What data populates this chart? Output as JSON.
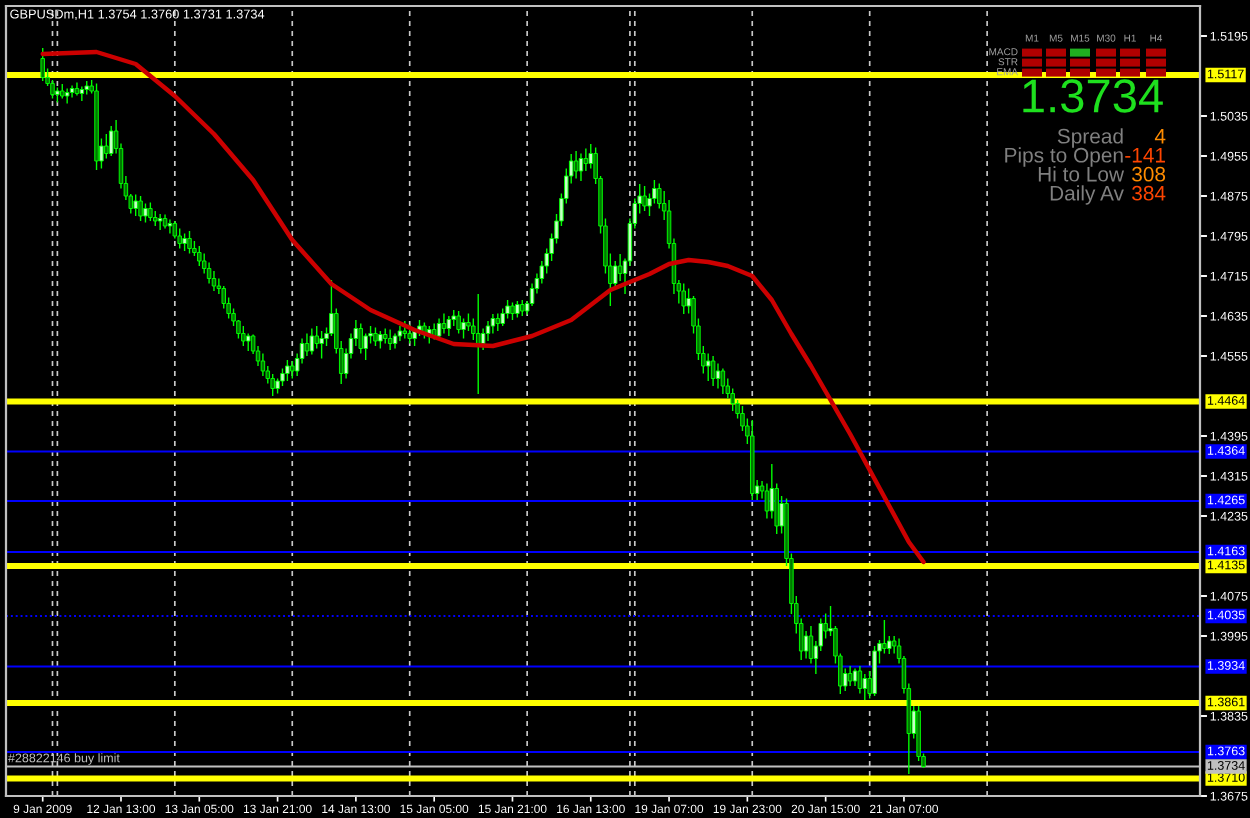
{
  "chart_data": {
    "type": "candlestick",
    "title": "GBPUSDm,H1 1.3754 1.3760 1.3731 1.3734",
    "color": "#00ff00",
    "categories": [
      null,
      null,
      null,
      null,
      null,
      null,
      null,
      "9 Jan 2009",
      null,
      null,
      null,
      null,
      null,
      null,
      null,
      null,
      null,
      null,
      null,
      null,
      null,
      null,
      null,
      "12 Jan 13:00",
      null,
      null,
      null,
      null,
      null,
      null,
      null,
      null,
      null,
      null,
      null,
      null,
      null,
      null,
      null,
      "13 Jan 05:00",
      null,
      null,
      null,
      null,
      null,
      null,
      null,
      null,
      null,
      null,
      null,
      null,
      null,
      null,
      null,
      "13 Jan 21:00",
      null,
      null,
      null,
      null,
      null,
      null,
      null,
      null,
      null,
      null,
      null,
      null,
      null,
      null,
      null,
      "14 Jan 13:00",
      null,
      null,
      null,
      null,
      null,
      null,
      null,
      null,
      null,
      null,
      null,
      null,
      null,
      null,
      null,
      "15 Jan 05:00",
      null,
      null,
      null,
      null,
      null,
      null,
      null,
      null,
      null,
      null,
      null,
      null,
      null,
      null,
      null,
      "15 Jan 21:00",
      null,
      null,
      null,
      null,
      null,
      null,
      null,
      null,
      null,
      null,
      null,
      null,
      null,
      null,
      null,
      "16 Jan 13:00",
      null,
      null,
      null,
      null,
      null,
      null,
      null,
      null,
      null,
      null,
      null,
      null,
      null,
      null,
      null,
      "19 Jan 07:00",
      null,
      null,
      null,
      null,
      null,
      null,
      null,
      null,
      null,
      null,
      null,
      null,
      null,
      null,
      null,
      "19 Jan 23:00",
      null,
      null,
      null,
      null,
      null,
      null,
      null,
      null,
      null,
      null,
      null,
      null,
      null,
      null,
      null,
      "20 Jan 15:00",
      null,
      null,
      null,
      null,
      null,
      null,
      null,
      null,
      null,
      null,
      null,
      null,
      null,
      null,
      null,
      "21 Jan 07:00",
      null,
      null,
      null,
      null,
      null,
      null,
      null,
      null,
      null,
      null,
      null,
      null,
      null,
      null,
      null,
      null,
      null,
      null,
      null,
      null,
      null,
      null,
      null,
      null,
      null,
      null,
      null,
      null,
      null,
      null,
      null,
      null,
      null,
      null,
      null,
      null,
      null,
      null,
      null,
      null,
      null,
      null,
      null,
      null,
      null,
      null,
      null,
      null,
      null,
      null,
      null,
      null,
      null,
      null,
      null,
      null,
      null,
      null,
      null,
      null
    ],
    "ohlc": [
      null,
      null,
      null,
      null,
      null,
      null,
      null,
      [
        1.515,
        1.5171,
        1.5105,
        1.5112
      ],
      [
        1.5112,
        1.513,
        1.5095,
        1.51
      ],
      [
        1.51,
        1.5107,
        1.507,
        1.5078
      ],
      [
        1.5078,
        1.5092,
        1.5062,
        1.5085
      ],
      [
        1.5085,
        1.5099,
        1.507,
        1.5075
      ],
      [
        1.5075,
        1.509,
        1.506,
        1.5082
      ],
      [
        1.5082,
        1.5096,
        1.5072,
        1.509
      ],
      [
        1.509,
        1.5102,
        1.5076,
        1.508
      ],
      [
        1.508,
        1.5094,
        1.5065,
        1.5088
      ],
      [
        1.5088,
        1.5105,
        1.5078,
        1.5095
      ],
      [
        1.5095,
        1.5107,
        1.508,
        1.5085
      ],
      [
        1.5085,
        1.51,
        1.4927,
        1.4945
      ],
      [
        1.4945,
        1.499,
        1.493,
        1.4975
      ],
      [
        1.4975,
        1.4999,
        1.495,
        1.496
      ],
      [
        1.496,
        1.5015,
        1.4955,
        1.5005
      ],
      [
        1.5005,
        1.5027,
        1.496,
        1.497
      ],
      [
        1.497,
        1.498,
        1.489,
        1.49
      ],
      [
        1.49,
        1.4915,
        1.4867,
        1.4875
      ],
      [
        1.4875,
        1.4879,
        1.484,
        1.485
      ],
      [
        1.485,
        1.4878,
        1.4835,
        1.4865
      ],
      [
        1.4865,
        1.4875,
        1.4825,
        1.4835
      ],
      [
        1.4835,
        1.486,
        1.4822,
        1.485
      ],
      [
        1.485,
        1.4862,
        1.4825,
        1.4832
      ],
      [
        1.4832,
        1.4845,
        1.4815,
        1.4825
      ],
      [
        1.4825,
        1.4839,
        1.4807,
        1.483
      ],
      [
        1.483,
        1.4838,
        1.481,
        1.4815
      ],
      [
        1.4815,
        1.4828,
        1.48,
        1.482
      ],
      [
        1.482,
        1.4825,
        1.479,
        1.4795
      ],
      [
        1.4795,
        1.481,
        1.477,
        1.478
      ],
      [
        1.478,
        1.48,
        1.4765,
        1.479
      ],
      [
        1.479,
        1.4805,
        1.476,
        1.477
      ],
      [
        1.477,
        1.4785,
        1.4755,
        1.4762
      ],
      [
        1.4762,
        1.4775,
        1.4735,
        1.4745
      ],
      [
        1.4745,
        1.476,
        1.472,
        1.473
      ],
      [
        1.473,
        1.4742,
        1.47,
        1.471
      ],
      [
        1.471,
        1.4725,
        1.4685,
        1.4695
      ],
      [
        1.4695,
        1.471,
        1.4679,
        1.469
      ],
      [
        1.469,
        1.4695,
        1.465,
        1.466
      ],
      [
        1.466,
        1.4672,
        1.463,
        1.464
      ],
      [
        1.464,
        1.465,
        1.4615,
        1.4625
      ],
      [
        1.4625,
        1.4627,
        1.459,
        1.46
      ],
      [
        1.46,
        1.4615,
        1.4575,
        1.4585
      ],
      [
        1.4585,
        1.46,
        1.4565,
        1.4595
      ],
      [
        1.4595,
        1.4598,
        1.4559,
        1.4565
      ],
      [
        1.4565,
        1.4575,
        1.4535,
        1.4545
      ],
      [
        1.4545,
        1.456,
        1.4515,
        1.4525
      ],
      [
        1.4525,
        1.4535,
        1.45,
        1.451
      ],
      [
        1.451,
        1.4519,
        1.4475,
        1.449
      ],
      [
        1.449,
        1.451,
        1.448,
        1.4505
      ],
      [
        1.4505,
        1.453,
        1.4495,
        1.452
      ],
      [
        1.452,
        1.4547,
        1.4505,
        1.4535
      ],
      [
        1.4535,
        1.4545,
        1.451,
        1.4525
      ],
      [
        1.4525,
        1.456,
        1.4515,
        1.455
      ],
      [
        1.455,
        1.459,
        1.454,
        1.458
      ],
      [
        1.458,
        1.46,
        1.4555,
        1.4565
      ],
      [
        1.4565,
        1.461,
        1.4558,
        1.4595
      ],
      [
        1.4595,
        1.4615,
        1.457,
        1.458
      ],
      [
        1.458,
        1.4605,
        1.455,
        1.459
      ],
      [
        1.459,
        1.4612,
        1.4575,
        1.46
      ],
      [
        1.46,
        1.4707,
        1.4595,
        1.464
      ],
      [
        1.464,
        1.465,
        1.456,
        1.457
      ],
      [
        1.457,
        1.4585,
        1.4499,
        1.452
      ],
      [
        1.452,
        1.457,
        1.451,
        1.456
      ],
      [
        1.456,
        1.46,
        1.455,
        1.459
      ],
      [
        1.459,
        1.4627,
        1.4575,
        1.461
      ],
      [
        1.461,
        1.462,
        1.456,
        1.457
      ],
      [
        1.457,
        1.46,
        1.4547,
        1.4595
      ],
      [
        1.4595,
        1.4615,
        1.458,
        1.46
      ],
      [
        1.46,
        1.4612,
        1.4575,
        1.4585
      ],
      [
        1.4585,
        1.4605,
        1.457,
        1.4598
      ],
      [
        1.4598,
        1.461,
        1.458,
        1.459
      ],
      [
        1.459,
        1.4608,
        1.4567,
        1.458
      ],
      [
        1.458,
        1.46,
        1.457,
        1.4595
      ],
      [
        1.4595,
        1.4615,
        1.4585,
        1.4605
      ],
      [
        1.4605,
        1.4625,
        1.459,
        1.46
      ],
      [
        1.46,
        1.4618,
        1.458,
        1.459
      ],
      [
        1.459,
        1.461,
        1.4575,
        1.4605
      ],
      [
        1.4605,
        1.4627,
        1.4595,
        1.4615
      ],
      [
        1.4615,
        1.4622,
        1.459,
        1.4598
      ],
      [
        1.4598,
        1.4615,
        1.458,
        1.4608
      ],
      [
        1.4608,
        1.462,
        1.4588,
        1.4595
      ],
      [
        1.4595,
        1.463,
        1.459,
        1.462
      ],
      [
        1.462,
        1.464,
        1.46,
        1.461
      ],
      [
        1.461,
        1.4635,
        1.4595,
        1.4628
      ],
      [
        1.4628,
        1.4647,
        1.4615,
        1.4635
      ],
      [
        1.4635,
        1.4645,
        1.46,
        1.4608
      ],
      [
        1.4608,
        1.463,
        1.459,
        1.4622
      ],
      [
        1.4622,
        1.464,
        1.4605,
        1.4615
      ],
      [
        1.4615,
        1.463,
        1.4587,
        1.46
      ],
      [
        1.46,
        1.4679,
        1.4479,
        1.458
      ],
      [
        1.458,
        1.461,
        1.4567,
        1.46
      ],
      [
        1.46,
        1.4625,
        1.4585,
        1.4615
      ],
      [
        1.4615,
        1.4639,
        1.46,
        1.463
      ],
      [
        1.463,
        1.464,
        1.4605,
        1.462
      ],
      [
        1.462,
        1.465,
        1.4615,
        1.464
      ],
      [
        1.464,
        1.4667,
        1.463,
        1.4655
      ],
      [
        1.4655,
        1.4662,
        1.4627,
        1.464
      ],
      [
        1.464,
        1.4665,
        1.4632,
        1.4658
      ],
      [
        1.4658,
        1.4667,
        1.4635,
        1.4645
      ],
      [
        1.4645,
        1.4665,
        1.4638,
        1.466
      ],
      [
        1.466,
        1.47,
        1.4655,
        1.469
      ],
      [
        1.469,
        1.472,
        1.468,
        1.471
      ],
      [
        1.471,
        1.4745,
        1.47,
        1.4735
      ],
      [
        1.4735,
        1.477,
        1.472,
        1.476
      ],
      [
        1.476,
        1.48,
        1.4745,
        1.479
      ],
      [
        1.479,
        1.4839,
        1.478,
        1.4825
      ],
      [
        1.4825,
        1.488,
        1.4815,
        1.487
      ],
      [
        1.487,
        1.493,
        1.486,
        1.4915
      ],
      [
        1.4915,
        1.4959,
        1.49,
        1.4945
      ],
      [
        1.4945,
        1.4965,
        1.491,
        1.4925
      ],
      [
        1.4925,
        1.496,
        1.4905,
        1.495
      ],
      [
        1.495,
        1.497,
        1.4925,
        1.494
      ],
      [
        1.494,
        1.4979,
        1.493,
        1.496
      ],
      [
        1.496,
        1.4972,
        1.4899,
        1.491
      ],
      [
        1.491,
        1.4915,
        1.48,
        1.4815
      ],
      [
        1.4815,
        1.483,
        1.472,
        1.4735
      ],
      [
        1.4735,
        1.476,
        1.4655,
        1.47
      ],
      [
        1.47,
        1.4745,
        1.469,
        1.4735
      ],
      [
        1.4735,
        1.4759,
        1.4705,
        1.472
      ],
      [
        1.472,
        1.475,
        1.4679,
        1.4745
      ],
      [
        1.4745,
        1.483,
        1.4735,
        1.482
      ],
      [
        1.482,
        1.487,
        1.481,
        1.486
      ],
      [
        1.486,
        1.4899,
        1.484,
        1.4875
      ],
      [
        1.4875,
        1.4895,
        1.4845,
        1.4855
      ],
      [
        1.4855,
        1.488,
        1.4835,
        1.487
      ],
      [
        1.487,
        1.4907,
        1.486,
        1.489
      ],
      [
        1.489,
        1.49,
        1.485,
        1.486
      ],
      [
        1.486,
        1.4885,
        1.4827,
        1.4845
      ],
      [
        1.4845,
        1.4867,
        1.477,
        1.478
      ],
      [
        1.478,
        1.479,
        1.4679,
        1.47
      ],
      [
        1.47,
        1.4707,
        1.466,
        1.4685
      ],
      [
        1.4685,
        1.47,
        1.4639,
        1.4655
      ],
      [
        1.4655,
        1.469,
        1.464,
        1.467
      ],
      [
        1.467,
        1.4675,
        1.46,
        1.4615
      ],
      [
        1.4615,
        1.463,
        1.4547,
        1.456
      ],
      [
        1.456,
        1.4575,
        1.452,
        1.4535
      ],
      [
        1.4535,
        1.456,
        1.4505,
        1.4545
      ],
      [
        1.4545,
        1.4555,
        1.4495,
        1.451
      ],
      [
        1.451,
        1.454,
        1.449,
        1.4525
      ],
      [
        1.4525,
        1.453,
        1.4479,
        1.4495
      ],
      [
        1.4495,
        1.451,
        1.447,
        1.448
      ],
      [
        1.448,
        1.449,
        1.4445,
        1.446
      ],
      [
        1.446,
        1.4467,
        1.443,
        1.444
      ],
      [
        1.444,
        1.4455,
        1.4405,
        1.4415
      ],
      [
        1.4415,
        1.443,
        1.4379,
        1.4395
      ],
      [
        1.4395,
        1.4427,
        1.4267,
        1.428
      ],
      [
        1.428,
        1.4307,
        1.4267,
        1.4295
      ],
      [
        1.4295,
        1.4305,
        1.427,
        1.4285
      ],
      [
        1.4285,
        1.43,
        1.423,
        1.4245
      ],
      [
        1.4245,
        1.4339,
        1.423,
        1.429
      ],
      [
        1.429,
        1.43,
        1.4199,
        1.4215
      ],
      [
        1.4215,
        1.4275,
        1.42,
        1.426
      ],
      [
        1.426,
        1.427,
        1.4135,
        1.415
      ],
      [
        1.415,
        1.416,
        1.4039,
        1.406
      ],
      [
        1.406,
        1.4075,
        1.4,
        1.402
      ],
      [
        1.402,
        1.403,
        1.3947,
        1.3965
      ],
      [
        1.3965,
        1.4005,
        1.395,
        1.3995
      ],
      [
        1.3995,
        1.4015,
        1.394,
        1.395
      ],
      [
        1.395,
        1.3985,
        1.3919,
        1.3975
      ],
      [
        1.3975,
        1.403,
        1.3965,
        1.402
      ],
      [
        1.402,
        1.404,
        1.399,
        1.4005
      ],
      [
        1.4005,
        1.4055,
        1.3995,
        1.401
      ],
      [
        1.401,
        1.4015,
        1.394,
        1.3955
      ],
      [
        1.3955,
        1.396,
        1.3879,
        1.3895
      ],
      [
        1.3895,
        1.393,
        1.3885,
        1.392
      ],
      [
        1.392,
        1.3935,
        1.3895,
        1.3905
      ],
      [
        1.3905,
        1.393,
        1.3895,
        1.3925
      ],
      [
        1.3925,
        1.3935,
        1.388,
        1.389
      ],
      [
        1.389,
        1.3919,
        1.3867,
        1.391
      ],
      [
        1.391,
        1.3925,
        1.387,
        1.388
      ],
      [
        1.388,
        1.3975,
        1.3875,
        1.3965
      ],
      [
        1.3965,
        1.3987,
        1.394,
        1.398
      ],
      [
        1.398,
        1.4027,
        1.396,
        1.397
      ],
      [
        1.397,
        1.3995,
        1.3959,
        1.3985
      ],
      [
        1.3985,
        1.3995,
        1.396,
        1.3975
      ],
      [
        1.3975,
        1.399,
        1.394,
        1.395
      ],
      [
        1.395,
        1.3955,
        1.388,
        1.389
      ],
      [
        1.389,
        1.39,
        1.3719,
        1.38
      ],
      [
        1.38,
        1.3855,
        1.379,
        1.3845
      ],
      [
        1.3845,
        1.3855,
        1.3745,
        1.3754
      ],
      [
        1.3754,
        1.376,
        1.3731,
        1.3734
      ],
      null,
      null,
      null,
      null,
      null,
      null,
      null,
      null,
      null,
      null,
      null,
      null,
      null,
      null,
      null,
      null,
      null,
      null,
      null,
      null,
      null,
      null,
      null,
      null,
      null,
      null,
      null,
      null,
      null,
      null,
      null,
      null,
      null,
      null,
      null,
      null,
      null,
      null,
      null,
      null,
      null,
      null,
      null,
      null,
      null,
      null,
      null,
      null,
      null,
      null,
      null,
      null,
      null,
      null,
      null,
      null
    ],
    "colors": [
      null,
      null,
      null,
      null,
      null,
      null,
      null,
      "#007800",
      "#007800",
      "#007800",
      "#c8ffc8",
      "#007800",
      "#c8ffc8",
      "#c8ffc8",
      "#007800",
      "#c8ffc8",
      "#c8ffc8",
      "#007800",
      "#007800",
      "#c8ffc8",
      "#007800",
      "#c8ffc8",
      "#007800",
      "#007800",
      "#007800",
      "#007800",
      "#c8ffc8",
      "#007800",
      "#c8ffc8",
      "#007800",
      "#007800",
      "#c8ffc8",
      "#007800",
      "#c8ffc8",
      "#007800",
      "#007800",
      "#c8ffc8",
      "#007800",
      "#007800",
      "#007800",
      "#007800",
      "#007800",
      "#007800",
      "#007800",
      "#007800",
      "#007800",
      "#007800",
      "#007800",
      "#007800",
      "#c8ffc8",
      "#007800",
      "#007800",
      "#007800",
      "#007800",
      "#007800",
      "#c8ffc8",
      "#c8ffc8",
      "#c8ffc8",
      "#007800",
      "#c8ffc8",
      "#c8ffc8",
      "#007800",
      "#c8ffc8",
      "#007800",
      "#c8ffc8",
      "#c8ffc8",
      "#c8ffc8",
      "#007800",
      "#007800",
      "#c8ffc8",
      "#c8ffc8",
      "#c8ffc8",
      "#007800",
      "#c8ffc8",
      "#c8ffc8",
      "#007800",
      "#c8ffc8",
      "#007800",
      "#007800",
      "#c8ffc8",
      "#c8ffc8",
      "#007800",
      "#007800",
      "#c8ffc8",
      "#c8ffc8",
      "#007800",
      "#c8ffc8",
      "#007800",
      "#c8ffc8",
      "#007800",
      "#c8ffc8",
      "#c8ffc8",
      "#007800",
      "#c8ffc8",
      "#007800",
      "#007800",
      "#007800",
      "#c8ffc8",
      "#c8ffc8",
      "#c8ffc8",
      "#007800",
      "#c8ffc8",
      "#c8ffc8",
      "#007800",
      "#c8ffc8",
      "#007800",
      "#c8ffc8",
      "#c8ffc8",
      "#c8ffc8",
      "#c8ffc8",
      "#c8ffc8",
      "#c8ffc8",
      "#c8ffc8",
      "#c8ffc8",
      "#c8ffc8",
      "#c8ffc8",
      "#007800",
      "#c8ffc8",
      "#007800",
      "#c8ffc8",
      "#007800",
      "#007800",
      "#007800",
      "#007800",
      "#c8ffc8",
      "#007800",
      "#c8ffc8",
      "#c8ffc8",
      "#c8ffc8",
      "#c8ffc8",
      "#007800",
      "#c8ffc8",
      "#c8ffc8",
      "#007800",
      "#007800",
      "#007800",
      "#007800",
      "#007800",
      "#007800",
      "#c8ffc8",
      "#007800",
      "#007800",
      "#007800",
      "#c8ffc8",
      "#007800",
      "#c8ffc8",
      "#007800",
      "#007800",
      "#007800",
      "#007800",
      "#007800",
      "#007800",
      "#007800",
      "#c8ffc8",
      "#007800",
      "#007800",
      "#c8ffc8",
      "#007800",
      "#c8ffc8",
      "#007800",
      "#007800",
      "#007800",
      "#007800",
      "#c8ffc8",
      "#007800",
      "#c8ffc8",
      "#c8ffc8",
      "#007800",
      "#c8ffc8",
      "#007800",
      "#007800",
      "#c8ffc8",
      "#007800",
      "#c8ffc8",
      "#007800",
      "#c8ffc8",
      "#007800",
      "#c8ffc8",
      "#c8ffc8",
      "#007800",
      "#c8ffc8",
      "#007800",
      "#007800",
      "#007800",
      "#007800",
      "#c8ffc8",
      "#007800",
      "#007800",
      null,
      null,
      null,
      null,
      null,
      null,
      null,
      null,
      null,
      null,
      null,
      null,
      null,
      null,
      null,
      null,
      null,
      null,
      null,
      null,
      null,
      null,
      null,
      null,
      null,
      null,
      null,
      null,
      null,
      null,
      null,
      null,
      null,
      null,
      null,
      null,
      null,
      null,
      null,
      null,
      null,
      null,
      null,
      null,
      null,
      null,
      null,
      null,
      null,
      null,
      null,
      null,
      null,
      null,
      null,
      null
    ],
    "series": [
      {
        "type": "line",
        "color": "#cc0000",
        "values": [
          null,
          null,
          null,
          null,
          null,
          null,
          null,
          1.5159,
          null,
          null,
          null,
          null,
          null,
          null,
          null,
          null,
          null,
          null,
          1.5163,
          null,
          null,
          null,
          null,
          null,
          null,
          null,
          1.5139,
          null,
          null,
          null,
          1.5107,
          null,
          null,
          null,
          1.5075,
          null,
          null,
          null,
          null,
          null,
          null,
          null,
          1.4999,
          null,
          null,
          null,
          null,
          null,
          null,
          null,
          1.4907,
          null,
          null,
          null,
          null,
          null,
          null,
          null,
          1.4787,
          null,
          null,
          null,
          null,
          null,
          null,
          null,
          1.4699,
          null,
          null,
          null,
          null,
          null,
          null,
          null,
          1.4647,
          null,
          null,
          null,
          null,
          null,
          null,
          null,
          null,
          1.4607,
          null,
          null,
          null,
          null,
          null,
          null,
          null,
          1.4579,
          null,
          null,
          null,
          null,
          null,
          null,
          null,
          1.4575,
          null,
          null,
          null,
          null,
          null,
          null,
          null,
          1.4595,
          null,
          null,
          null,
          null,
          null,
          null,
          null,
          1.4627,
          null,
          null,
          null,
          null,
          null,
          null,
          null,
          1.4687,
          null,
          null,
          null,
          null,
          null,
          null,
          null,
          1.4719,
          null,
          null,
          null,
          1.4739,
          null,
          null,
          null,
          1.4747,
          null,
          null,
          null,
          1.4743,
          null,
          null,
          null,
          1.4735,
          null,
          null,
          null,
          null,
          1.4715,
          null,
          null,
          null,
          1.4667,
          null,
          null,
          null,
          1.4599,
          null,
          null,
          null,
          1.4535,
          null,
          null,
          null,
          1.4467,
          null,
          null,
          null,
          1.4399,
          null,
          null,
          null,
          1.4327,
          null,
          null,
          null,
          1.4255,
          null,
          null,
          null,
          1.4183,
          null,
          null,
          1.4143,
          null,
          null,
          null,
          null,
          null,
          null,
          null,
          null,
          null,
          null,
          null,
          null,
          null,
          null,
          null,
          null,
          null,
          null,
          null,
          null,
          null,
          null,
          null,
          null,
          null,
          null,
          null,
          null,
          null,
          null,
          null,
          null,
          null,
          null,
          null,
          null,
          null,
          null,
          null,
          null,
          null,
          null,
          null,
          null,
          null,
          null,
          null,
          null,
          null,
          null,
          null,
          null,
          null,
          null,
          null,
          null
        ]
      }
    ],
    "ylim": [
      1.3675,
      1.5255
    ],
    "yticks": [
      1.5195,
      1.5035,
      1.4955,
      1.4875,
      1.4795,
      1.4715,
      1.4635,
      1.4555,
      1.4395,
      1.4315,
      1.4235,
      1.4075,
      1.3995,
      1.3835,
      1.3675
    ],
    "ref_lines": [
      {
        "axis": "y",
        "value": 1.5117,
        "label": "1.5117",
        "color": "#ffff00"
      },
      {
        "axis": "y",
        "value": 1.4464,
        "label": "1.4464",
        "color": "#ffff00"
      },
      {
        "axis": "y",
        "value": 1.4135,
        "label": "1.4135",
        "color": "#ffff00"
      },
      {
        "axis": "y",
        "value": 1.3861,
        "label": "1.3861",
        "color": "#ffff00"
      },
      {
        "axis": "y",
        "value": 1.371,
        "label": "1.3710",
        "color": "#ffff00"
      },
      {
        "axis": "y",
        "value": 1.4364,
        "label": "1.4364",
        "color": "#0000ff"
      },
      {
        "axis": "y",
        "value": 1.4265,
        "label": "1.4265",
        "color": "#0000ff"
      },
      {
        "axis": "y",
        "value": 1.4163,
        "label": "1.4163",
        "color": "#0000ff"
      },
      {
        "axis": "y",
        "value": 1.4035,
        "label": "1.4035",
        "color": "#0000ff",
        "line_style": "dotted"
      },
      {
        "axis": "y",
        "value": 1.3934,
        "label": "1.3934",
        "color": "#0000ff"
      },
      {
        "axis": "y",
        "value": 1.3763,
        "label": "1.3763",
        "color": "#0000ff"
      },
      {
        "axis": "y",
        "value": 1.3734,
        "label": "1.3734",
        "color": "#c0c0c0"
      }
    ],
    "annotations": [
      "#28822146 buy limit",
      "1.3734",
      "Spread",
      "4",
      "Pips to Open",
      "-141",
      "Hi to Low",
      "308",
      "Daily Av",
      "384",
      "M1",
      "M5",
      "M15",
      "M30",
      "H1",
      "H4",
      "MACD",
      "STR",
      "EMA"
    ]
  }
}
